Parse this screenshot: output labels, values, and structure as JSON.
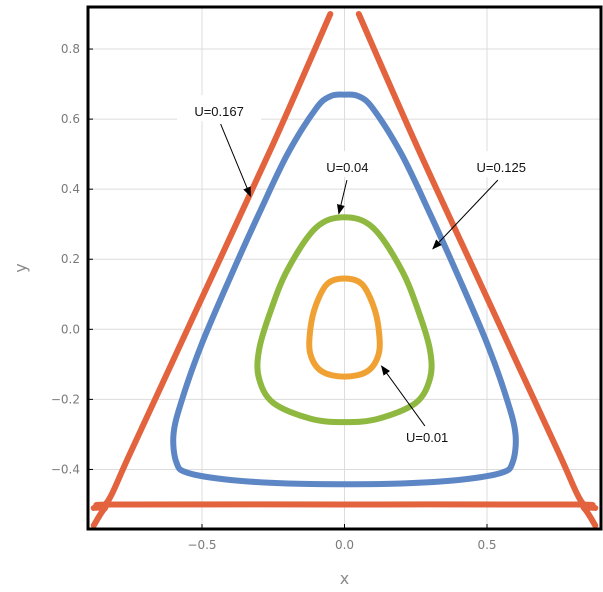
{
  "chart_data": {
    "type": "line",
    "title": "",
    "xlabel": "x",
    "ylabel": "y",
    "xlim": [
      -0.9,
      0.9
    ],
    "ylim": [
      -0.57,
      0.92
    ],
    "x_ticks": [
      -0.5,
      0.0,
      0.5
    ],
    "x_tick_labels": [
      "−0.5",
      "0.0",
      "0.5"
    ],
    "y_ticks": [
      -0.4,
      -0.2,
      0.0,
      0.2,
      0.4,
      0.6,
      0.8
    ],
    "y_tick_labels": [
      "−0.4",
      "−0.2",
      "0.0",
      "0.2",
      "0.4",
      "0.6",
      "0.8"
    ],
    "grid": true,
    "series": [
      {
        "name": "U=0.167",
        "color": "#e2633d",
        "segments": [
          [
            [
              -0.88,
              -0.51
            ],
            [
              -0.83,
              -0.49
            ],
            [
              -0.75,
              -0.35
            ],
            [
              -0.5,
              0.09
            ],
            [
              -0.25,
              0.53
            ],
            [
              -0.05,
              0.9
            ]
          ],
          [
            [
              0.05,
              0.9
            ],
            [
              0.25,
              0.53
            ],
            [
              0.5,
              0.09
            ],
            [
              0.75,
              -0.35
            ],
            [
              0.83,
              -0.49
            ],
            [
              0.88,
              -0.51
            ]
          ],
          [
            [
              -0.88,
              -0.56
            ],
            [
              -0.84,
              -0.51
            ],
            [
              -0.8,
              -0.5
            ],
            [
              0.0,
              -0.5
            ],
            [
              0.8,
              -0.5
            ],
            [
              0.84,
              -0.51
            ],
            [
              0.88,
              -0.56
            ]
          ]
        ]
      },
      {
        "name": "U=0.125",
        "color": "#5d86c4",
        "points": [
          [
            0,
            0.67
          ],
          [
            0.05,
            0.665
          ],
          [
            0.1,
            0.63
          ],
          [
            0.2,
            0.5
          ],
          [
            0.3,
            0.33
          ],
          [
            0.4,
            0.15
          ],
          [
            0.5,
            -0.04
          ],
          [
            0.57,
            -0.2
          ],
          [
            0.6,
            -0.3
          ],
          [
            0.59,
            -0.38
          ],
          [
            0.55,
            -0.41
          ],
          [
            0.4,
            -0.43
          ],
          [
            0.2,
            -0.44
          ],
          [
            0,
            -0.442
          ],
          [
            -0.2,
            -0.44
          ],
          [
            -0.4,
            -0.43
          ],
          [
            -0.55,
            -0.41
          ],
          [
            -0.59,
            -0.38
          ],
          [
            -0.6,
            -0.3
          ],
          [
            -0.57,
            -0.2
          ],
          [
            -0.5,
            -0.04
          ],
          [
            -0.4,
            0.15
          ],
          [
            -0.3,
            0.33
          ],
          [
            -0.2,
            0.5
          ],
          [
            -0.1,
            0.63
          ],
          [
            -0.05,
            0.665
          ],
          [
            0,
            0.67
          ]
        ]
      },
      {
        "name": "U=0.04",
        "color": "#8eb83f",
        "points": [
          [
            0,
            0.32
          ],
          [
            0.1,
            0.29
          ],
          [
            0.2,
            0.17
          ],
          [
            0.26,
            0.05
          ],
          [
            0.3,
            -0.06
          ],
          [
            0.3,
            -0.14
          ],
          [
            0.25,
            -0.21
          ],
          [
            0.12,
            -0.255
          ],
          [
            0,
            -0.265
          ],
          [
            -0.12,
            -0.255
          ],
          [
            -0.25,
            -0.21
          ],
          [
            -0.3,
            -0.14
          ],
          [
            -0.3,
            -0.06
          ],
          [
            -0.26,
            0.05
          ],
          [
            -0.2,
            0.17
          ],
          [
            -0.1,
            0.29
          ],
          [
            0,
            0.32
          ]
        ]
      },
      {
        "name": "U=0.01",
        "color": "#f0a133",
        "points": [
          [
            0,
            0.145
          ],
          [
            0.06,
            0.13
          ],
          [
            0.1,
            0.07
          ],
          [
            0.12,
            0.0
          ],
          [
            0.12,
            -0.07
          ],
          [
            0.08,
            -0.12
          ],
          [
            0,
            -0.135
          ],
          [
            -0.08,
            -0.12
          ],
          [
            -0.12,
            -0.07
          ],
          [
            -0.12,
            0.0
          ],
          [
            -0.1,
            0.07
          ],
          [
            -0.06,
            0.13
          ],
          [
            0,
            0.145
          ]
        ]
      }
    ],
    "annotations": [
      {
        "text": "U=0.167",
        "series": "U=0.167",
        "text_at": [
          -0.44,
          0.62
        ],
        "arrow_to": [
          -0.33,
          0.38
        ]
      },
      {
        "text": "U=0.04",
        "series": "U=0.04",
        "text_at": [
          0.01,
          0.46
        ],
        "arrow_to": [
          -0.02,
          0.33
        ]
      },
      {
        "text": "U=0.125",
        "series": "U=0.125",
        "text_at": [
          0.55,
          0.46
        ],
        "arrow_to": [
          0.31,
          0.23
        ]
      },
      {
        "text": "U=0.01",
        "series": "U=0.01",
        "text_at": [
          0.29,
          -0.31
        ],
        "arrow_to": [
          0.13,
          -0.105
        ]
      }
    ]
  }
}
